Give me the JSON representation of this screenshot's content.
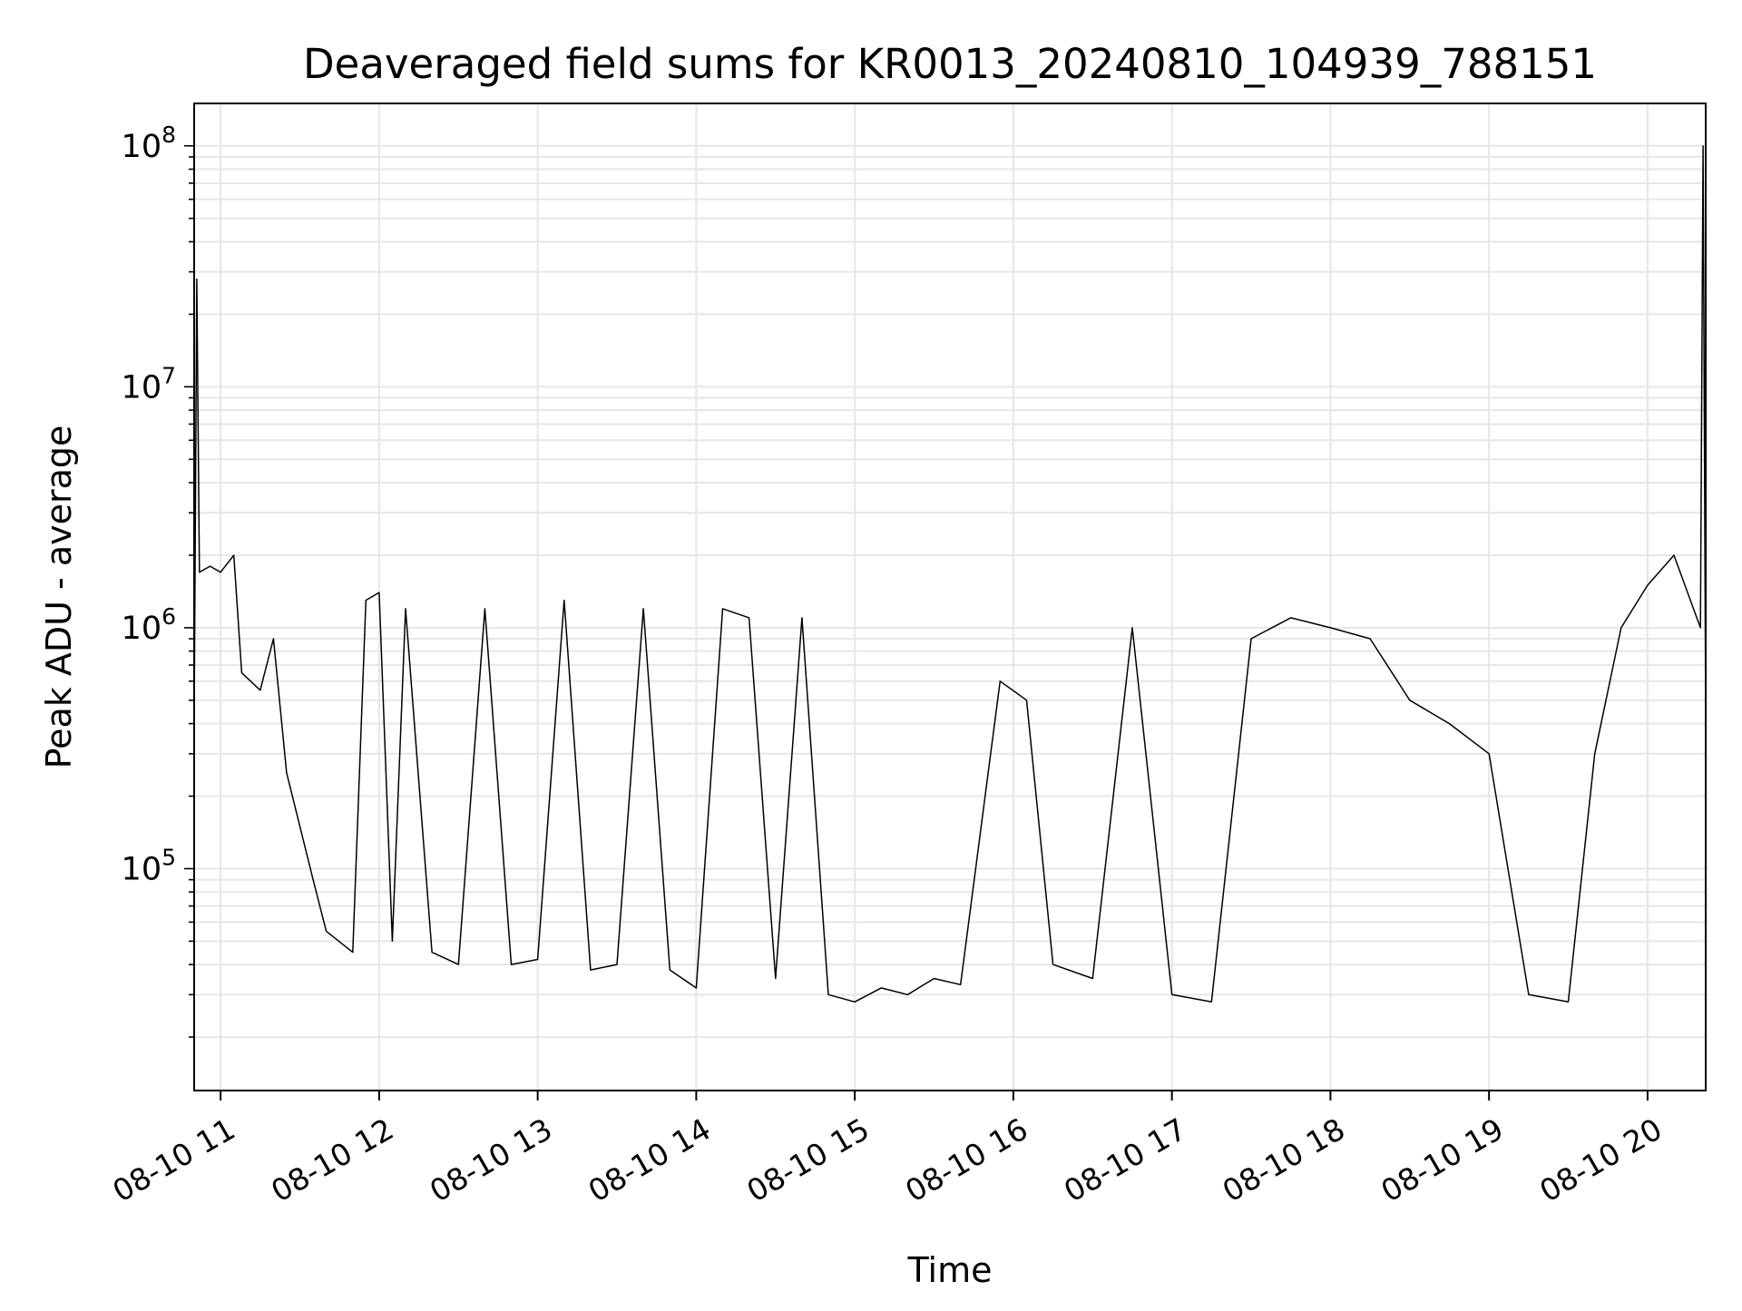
{
  "chart_data": {
    "type": "line",
    "title": "Deaveraged field sums for KR0013_20240810_104939_788151",
    "xlabel": "Time",
    "ylabel": "Peak ADU - average",
    "y_scale": "log",
    "ylim": [
      12000,
      150000000
    ],
    "xlim": [
      "2024-08-10 10:50",
      "2024-08-10 20:22"
    ],
    "x_ticks": [
      {
        "time": "2024-08-10 11:00",
        "label": "08-10 11"
      },
      {
        "time": "2024-08-10 12:00",
        "label": "08-10 12"
      },
      {
        "time": "2024-08-10 13:00",
        "label": "08-10 13"
      },
      {
        "time": "2024-08-10 14:00",
        "label": "08-10 14"
      },
      {
        "time": "2024-08-10 15:00",
        "label": "08-10 15"
      },
      {
        "time": "2024-08-10 16:00",
        "label": "08-10 16"
      },
      {
        "time": "2024-08-10 17:00",
        "label": "08-10 17"
      },
      {
        "time": "2024-08-10 18:00",
        "label": "08-10 18"
      },
      {
        "time": "2024-08-10 19:00",
        "label": "08-10 19"
      },
      {
        "time": "2024-08-10 20:00",
        "label": "08-10 20"
      }
    ],
    "y_ticks": [
      {
        "value": 100000,
        "base": "10",
        "exp": "5"
      },
      {
        "value": 1000000,
        "base": "10",
        "exp": "6"
      },
      {
        "value": 10000000,
        "base": "10",
        "exp": "7"
      },
      {
        "value": 100000000,
        "base": "10",
        "exp": "8"
      }
    ],
    "grid": true,
    "line_color": "#000000",
    "series": [
      {
        "points": [
          [
            "2024-08-10 10:50",
            400000
          ],
          [
            "2024-08-10 10:51",
            28000000
          ],
          [
            "2024-08-10 10:52",
            1700000
          ],
          [
            "2024-08-10 10:56",
            1800000
          ],
          [
            "2024-08-10 11:00",
            1700000
          ],
          [
            "2024-08-10 11:05",
            2000000
          ],
          [
            "2024-08-10 11:08",
            650000
          ],
          [
            "2024-08-10 11:15",
            550000
          ],
          [
            "2024-08-10 11:20",
            900000
          ],
          [
            "2024-08-10 11:25",
            250000
          ],
          [
            "2024-08-10 11:30",
            150000
          ],
          [
            "2024-08-10 11:35",
            90000
          ],
          [
            "2024-08-10 11:40",
            55000
          ],
          [
            "2024-08-10 11:50",
            45000
          ],
          [
            "2024-08-10 11:55",
            1300000
          ],
          [
            "2024-08-10 12:00",
            1400000
          ],
          [
            "2024-08-10 12:05",
            50000
          ],
          [
            "2024-08-10 12:10",
            1200000
          ],
          [
            "2024-08-10 12:20",
            45000
          ],
          [
            "2024-08-10 12:30",
            40000
          ],
          [
            "2024-08-10 12:40",
            1200000
          ],
          [
            "2024-08-10 12:50",
            40000
          ],
          [
            "2024-08-10 13:00",
            42000
          ],
          [
            "2024-08-10 13:10",
            1300000
          ],
          [
            "2024-08-10 13:20",
            38000
          ],
          [
            "2024-08-10 13:30",
            40000
          ],
          [
            "2024-08-10 13:40",
            1200000
          ],
          [
            "2024-08-10 13:50",
            38000
          ],
          [
            "2024-08-10 14:00",
            32000
          ],
          [
            "2024-08-10 14:10",
            1200000
          ],
          [
            "2024-08-10 14:20",
            1100000
          ],
          [
            "2024-08-10 14:30",
            35000
          ],
          [
            "2024-08-10 14:40",
            1100000
          ],
          [
            "2024-08-10 14:50",
            30000
          ],
          [
            "2024-08-10 15:00",
            28000
          ],
          [
            "2024-08-10 15:10",
            32000
          ],
          [
            "2024-08-10 15:20",
            30000
          ],
          [
            "2024-08-10 15:30",
            35000
          ],
          [
            "2024-08-10 15:40",
            33000
          ],
          [
            "2024-08-10 15:55",
            600000
          ],
          [
            "2024-08-10 16:05",
            500000
          ],
          [
            "2024-08-10 16:15",
            40000
          ],
          [
            "2024-08-10 16:30",
            35000
          ],
          [
            "2024-08-10 16:45",
            1000000
          ],
          [
            "2024-08-10 17:00",
            30000
          ],
          [
            "2024-08-10 17:15",
            28000
          ],
          [
            "2024-08-10 17:30",
            900000
          ],
          [
            "2024-08-10 17:45",
            1100000
          ],
          [
            "2024-08-10 18:00",
            1000000
          ],
          [
            "2024-08-10 18:15",
            900000
          ],
          [
            "2024-08-10 18:30",
            500000
          ],
          [
            "2024-08-10 18:45",
            400000
          ],
          [
            "2024-08-10 19:00",
            300000
          ],
          [
            "2024-08-10 19:15",
            30000
          ],
          [
            "2024-08-10 19:30",
            28000
          ],
          [
            "2024-08-10 19:40",
            300000
          ],
          [
            "2024-08-10 19:50",
            1000000
          ],
          [
            "2024-08-10 20:00",
            1500000
          ],
          [
            "2024-08-10 20:10",
            2000000
          ],
          [
            "2024-08-10 20:20",
            1000000
          ],
          [
            "2024-08-10 20:21",
            100000000
          ],
          [
            "2024-08-10 20:22",
            400000
          ]
        ]
      }
    ]
  }
}
